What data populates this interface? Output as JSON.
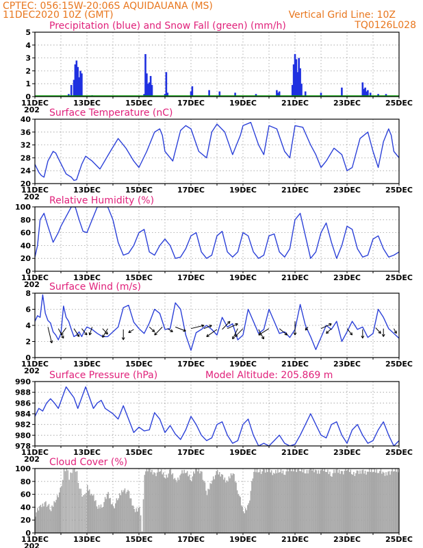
{
  "header": {
    "line1": "CPTEC:   056:15W-20:06S   AQUIDAUANA (MS)",
    "line2": "11DEC2020  10Z (GMT)",
    "grid_note": "Vertical Grid Line: 10Z",
    "code": "TQ0126L028"
  },
  "colors": {
    "header": "#e8761d",
    "panel_title": "#e0207a",
    "line": "#2b40d8",
    "precip": "#1f30e0",
    "snow": "#00a000",
    "cloud": "#a6a6a6",
    "grid": "#9a9a9a"
  },
  "x_tick_labels": [
    "11DEC",
    "13DEC",
    "15DEC",
    "17DEC",
    "19DEC",
    "21DEC",
    "23DEC",
    "25DEC"
  ],
  "x_year_stub": "202",
  "chart_data": [
    {
      "id": "precip",
      "type": "bar",
      "title": "Precipitation (blue) and Snow Fall (green) (mm/h)",
      "ylim": [
        0,
        5
      ],
      "yticks": [
        0,
        1,
        2,
        3,
        4,
        5
      ],
      "series": [
        {
          "name": "Precipitation (blue)",
          "points": [
            [
              1.3,
              0.2
            ],
            [
              1.4,
              0.9
            ],
            [
              1.5,
              1.3
            ],
            [
              1.55,
              2.5
            ],
            [
              1.6,
              2.8
            ],
            [
              1.65,
              2.3
            ],
            [
              1.7,
              1.5
            ],
            [
              1.75,
              2.0
            ],
            [
              1.8,
              1.8
            ],
            [
              2.2,
              0.1
            ],
            [
              4.2,
              0.2
            ],
            [
              4.25,
              3.3
            ],
            [
              4.3,
              1.8
            ],
            [
              4.35,
              1.0
            ],
            [
              4.4,
              1.1
            ],
            [
              4.45,
              1.6
            ],
            [
              4.5,
              0.9
            ],
            [
              5.0,
              0.2
            ],
            [
              5.05,
              1.9
            ],
            [
              5.1,
              0.3
            ],
            [
              6.0,
              0.4
            ],
            [
              6.05,
              0.8
            ],
            [
              6.7,
              0.5
            ],
            [
              7.1,
              0.4
            ],
            [
              7.7,
              0.3
            ],
            [
              8.5,
              0.2
            ],
            [
              9.3,
              0.5
            ],
            [
              9.35,
              0.3
            ],
            [
              9.4,
              0.4
            ],
            [
              9.9,
              0.9
            ],
            [
              9.95,
              2.5
            ],
            [
              10.0,
              3.3
            ],
            [
              10.05,
              2.9
            ],
            [
              10.1,
              1.9
            ],
            [
              10.15,
              3.0
            ],
            [
              10.2,
              2.2
            ],
            [
              10.25,
              1.0
            ],
            [
              10.4,
              0.4
            ],
            [
              11.0,
              0.3
            ],
            [
              11.8,
              0.7
            ],
            [
              12.6,
              1.1
            ],
            [
              12.65,
              0.6
            ],
            [
              12.7,
              0.7
            ],
            [
              12.75,
              0.4
            ],
            [
              12.8,
              0.5
            ],
            [
              12.9,
              0.3
            ],
            [
              13.2,
              0.2
            ],
            [
              13.5,
              0.2
            ]
          ]
        },
        {
          "name": "Snow Fall (green)",
          "points": []
        }
      ]
    },
    {
      "id": "temp",
      "type": "line",
      "title": "Surface Temperature (nC)",
      "ylim": [
        20,
        40
      ],
      "yticks": [
        20,
        24,
        28,
        32,
        36,
        40
      ],
      "ytick_labels": [
        "20",
        "24",
        "28",
        "32",
        "36",
        "40"
      ],
      "x": [
        0,
        0.15,
        0.25,
        0.35,
        0.5,
        0.7,
        0.8,
        0.95,
        1.2,
        1.4,
        1.5,
        1.6,
        1.8,
        1.95,
        2.2,
        2.5,
        2.9,
        3.2,
        3.5,
        3.8,
        4.0,
        4.3,
        4.6,
        4.8,
        4.9,
        5.0,
        5.3,
        5.6,
        5.8,
        6.0,
        6.3,
        6.6,
        6.8,
        7.0,
        7.3,
        7.6,
        7.9,
        8.0,
        8.3,
        8.6,
        8.8,
        9.0,
        9.3,
        9.6,
        9.8,
        10.0,
        10.3,
        10.6,
        10.8,
        11.0,
        11.2,
        11.5,
        11.8,
        12.0,
        12.2,
        12.5,
        12.8,
        13.0,
        13.2,
        13.4,
        13.6,
        13.7,
        13.8,
        14.0
      ],
      "y": [
        26,
        23.5,
        22.5,
        22,
        27,
        30,
        29.5,
        27,
        23,
        22,
        21,
        21.2,
        26,
        28.5,
        27,
        24.5,
        30,
        34,
        31,
        27,
        25,
        30,
        36,
        37,
        35,
        30,
        27,
        36.5,
        38,
        37,
        30,
        28,
        36,
        38.5,
        36,
        29,
        35,
        38,
        39,
        32,
        29,
        38,
        37,
        30,
        28,
        38,
        37.5,
        32,
        29,
        25,
        27,
        31,
        29,
        24,
        25,
        34,
        36,
        30,
        25,
        33,
        37,
        35,
        30,
        28
      ]
    },
    {
      "id": "rh",
      "type": "line",
      "title": "Relative Humidity (%)",
      "ylim": [
        0,
        100
      ],
      "yticks": [
        0,
        20,
        40,
        60,
        80,
        100
      ],
      "x": [
        0,
        0.1,
        0.2,
        0.35,
        0.5,
        0.7,
        0.9,
        1.0,
        1.2,
        1.4,
        1.55,
        1.7,
        1.85,
        2.0,
        2.2,
        2.4,
        2.6,
        2.8,
        3.0,
        3.2,
        3.4,
        3.6,
        3.8,
        4.0,
        4.2,
        4.4,
        4.6,
        4.8,
        5.0,
        5.2,
        5.4,
        5.6,
        5.8,
        6.0,
        6.2,
        6.4,
        6.6,
        6.8,
        7.0,
        7.2,
        7.4,
        7.6,
        7.8,
        8.0,
        8.2,
        8.4,
        8.6,
        8.8,
        9.0,
        9.2,
        9.4,
        9.6,
        9.8,
        10.0,
        10.2,
        10.4,
        10.6,
        10.8,
        11.0,
        11.2,
        11.4,
        11.6,
        11.8,
        12.0,
        12.2,
        12.4,
        12.6,
        12.8,
        13.0,
        13.2,
        13.4,
        13.6,
        13.8,
        14.0
      ],
      "y": [
        22,
        40,
        80,
        90,
        70,
        45,
        60,
        70,
        85,
        100,
        100,
        80,
        62,
        60,
        80,
        100,
        100,
        100,
        80,
        45,
        25,
        28,
        40,
        60,
        65,
        30,
        25,
        40,
        50,
        40,
        20,
        22,
        35,
        55,
        60,
        30,
        20,
        25,
        55,
        62,
        30,
        22,
        30,
        60,
        55,
        30,
        20,
        25,
        55,
        58,
        30,
        22,
        35,
        80,
        90,
        55,
        20,
        30,
        60,
        75,
        45,
        20,
        40,
        70,
        65,
        35,
        22,
        25,
        50,
        55,
        35,
        22,
        25,
        30
      ]
    },
    {
      "id": "wind",
      "type": "line",
      "title": "Surface Wind (m/s)",
      "ylim": [
        0,
        8
      ],
      "yticks": [
        0,
        2,
        4,
        6,
        8
      ],
      "x": [
        0,
        0.1,
        0.2,
        0.3,
        0.4,
        0.5,
        0.6,
        0.7,
        0.8,
        0.9,
        1.0,
        1.1,
        1.2,
        1.3,
        1.4,
        1.5,
        1.6,
        1.7,
        1.8,
        1.9,
        2.0,
        2.2,
        2.4,
        2.6,
        2.8,
        3.0,
        3.2,
        3.4,
        3.6,
        3.8,
        4.0,
        4.2,
        4.4,
        4.6,
        4.8,
        5.0,
        5.2,
        5.4,
        5.6,
        5.8,
        6.0,
        6.2,
        6.4,
        6.6,
        6.8,
        7.0,
        7.2,
        7.4,
        7.6,
        7.8,
        8.0,
        8.2,
        8.4,
        8.6,
        8.8,
        9.0,
        9.2,
        9.4,
        9.6,
        9.8,
        10.0,
        10.2,
        10.4,
        10.6,
        10.8,
        11.0,
        11.2,
        11.4,
        11.6,
        11.8,
        12.0,
        12.2,
        12.4,
        12.6,
        12.8,
        13.0,
        13.2,
        13.4,
        13.6,
        13.8,
        14.0
      ],
      "y": [
        4.5,
        5.2,
        5.0,
        7.8,
        5.5,
        4.6,
        4.3,
        3.2,
        2.8,
        2.2,
        3.0,
        6.4,
        5.0,
        4.5,
        3.5,
        2.6,
        2.8,
        3.2,
        2.6,
        3.3,
        3.8,
        3.5,
        3.0,
        2.6,
        2.6,
        3.2,
        3.8,
        6.2,
        6.5,
        4.4,
        3.6,
        3.0,
        4.3,
        6.0,
        5.5,
        3.5,
        3.6,
        6.8,
        6.0,
        2.8,
        0.9,
        3.1,
        3.5,
        4.0,
        3.5,
        2.8,
        5.0,
        3.8,
        4.2,
        2.2,
        2.8,
        6.0,
        4.5,
        3.0,
        3.5,
        6.0,
        4.5,
        3.0,
        3.2,
        2.5,
        3.5,
        6.6,
        4.0,
        2.6,
        1.0,
        2.5,
        4.0,
        3.5,
        4.5,
        2.0,
        3.2,
        4.5,
        3.5,
        3.8,
        2.5,
        3.0,
        6.0,
        5.0,
        3.6,
        3.0,
        2.4
      ]
    },
    {
      "id": "pres",
      "type": "line",
      "title": "Surface Pressure (hPa)",
      "annotation": "Model Altitude: 205.869  m",
      "ylim": [
        978,
        990
      ],
      "yticks": [
        978,
        980,
        982,
        984,
        986,
        988,
        990
      ],
      "x": [
        0,
        0.15,
        0.3,
        0.45,
        0.6,
        0.75,
        0.9,
        1.05,
        1.2,
        1.35,
        1.5,
        1.65,
        1.8,
        1.95,
        2.1,
        2.25,
        2.4,
        2.55,
        2.7,
        2.85,
        3.0,
        3.2,
        3.4,
        3.6,
        3.8,
        4.0,
        4.2,
        4.4,
        4.6,
        4.8,
        5.0,
        5.2,
        5.4,
        5.6,
        5.8,
        6.0,
        6.2,
        6.4,
        6.6,
        6.8,
        7.0,
        7.2,
        7.4,
        7.6,
        7.8,
        8.0,
        8.2,
        8.4,
        8.6,
        8.8,
        9.0,
        9.2,
        9.4,
        9.6,
        9.8,
        10.0,
        10.2,
        10.4,
        10.6,
        10.8,
        11.0,
        11.2,
        11.4,
        11.6,
        11.8,
        12.0,
        12.2,
        12.4,
        12.6,
        12.8,
        13.0,
        13.2,
        13.4,
        13.6,
        13.8,
        14.0
      ],
      "y": [
        983.5,
        985,
        984.5,
        986,
        986.8,
        986,
        985,
        987,
        989,
        988,
        987,
        985,
        987,
        989,
        987,
        985,
        986,
        986.5,
        985,
        984.5,
        984,
        983,
        985.5,
        983,
        980.5,
        981.5,
        980.8,
        981,
        984.2,
        983,
        980.5,
        981.8,
        980.2,
        979.2,
        981,
        983.5,
        982,
        980,
        979,
        979.5,
        982,
        982.5,
        980,
        978.5,
        979,
        982,
        983,
        980,
        978,
        978.5,
        978,
        979,
        980,
        978.5,
        978,
        978.3,
        980,
        982,
        984,
        982,
        980,
        979.5,
        982,
        982.5,
        980,
        978.5,
        981,
        982,
        980,
        978.5,
        979,
        981,
        982.5,
        980,
        978,
        979
      ]
    },
    {
      "id": "cloud",
      "type": "area",
      "title": "Cloud Cover (%)",
      "ylim": [
        0,
        100
      ],
      "yticks": [
        0,
        20,
        40,
        60,
        80,
        100
      ],
      "x": [
        0,
        0.2,
        0.4,
        0.6,
        0.8,
        1.0,
        1.1,
        1.2,
        1.3,
        1.4,
        1.5,
        1.6,
        1.7,
        1.8,
        1.9,
        2.0,
        2.2,
        2.4,
        2.6,
        2.8,
        3.0,
        3.2,
        3.4,
        3.6,
        3.8,
        4.0,
        4.1,
        4.2,
        4.4,
        4.6,
        4.8,
        5.0,
        5.2,
        5.4,
        5.6,
        5.8,
        6.0,
        6.2,
        6.4,
        6.6,
        6.8,
        7.0,
        7.2,
        7.4,
        7.6,
        7.8,
        8.0,
        8.2,
        8.4,
        8.6,
        8.8,
        9.0,
        9.2,
        9.4,
        9.6,
        9.8,
        10.0,
        10.2,
        10.4,
        10.6,
        10.8,
        11.0,
        11.2,
        11.4,
        11.6,
        11.8,
        12.0,
        12.2,
        12.4,
        12.6,
        12.8,
        13.0,
        13.2,
        13.4,
        13.6,
        13.8,
        14.0
      ],
      "y": [
        30,
        40,
        48,
        35,
        55,
        68,
        99,
        100,
        85,
        98,
        100,
        95,
        70,
        60,
        55,
        72,
        58,
        40,
        45,
        60,
        40,
        55,
        70,
        60,
        35,
        40,
        5,
        95,
        98,
        92,
        97,
        88,
        95,
        80,
        92,
        96,
        85,
        99,
        94,
        60,
        85,
        93,
        88,
        80,
        95,
        65,
        30,
        45,
        96,
        98,
        94,
        99,
        92,
        97,
        95,
        98,
        100,
        97,
        96,
        99,
        95,
        98,
        97,
        92,
        96,
        95,
        99,
        94,
        92,
        96,
        95,
        97,
        98,
        90,
        95,
        97,
        98
      ]
    }
  ]
}
